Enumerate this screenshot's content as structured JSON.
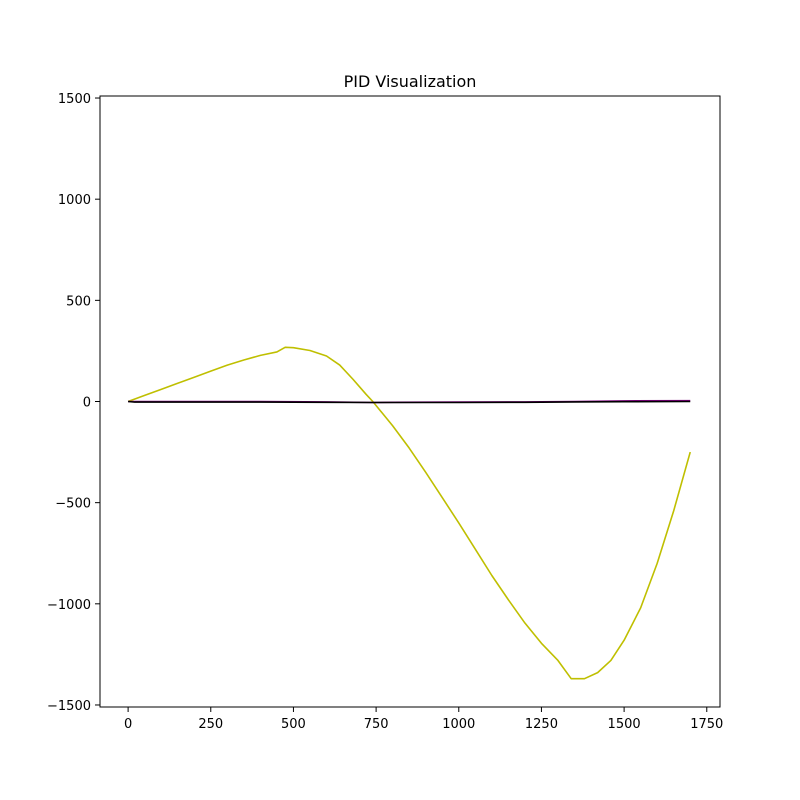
{
  "chart_data": {
    "type": "line",
    "title": "PID Visualization",
    "xlabel": "",
    "ylabel": "",
    "xlim": [
      -85,
      1790
    ],
    "ylim": [
      -1510,
      1510
    ],
    "xticks": [
      0,
      250,
      500,
      750,
      1000,
      1250,
      1500,
      1750
    ],
    "yticks": [
      -1500,
      -1000,
      -500,
      0,
      500,
      1000,
      1500
    ],
    "xtick_labels": [
      "0",
      "250",
      "500",
      "750",
      "1000",
      "1250",
      "1500",
      "1750"
    ],
    "ytick_labels": [
      "−1500",
      "−1000",
      "−500",
      "0",
      "500",
      "1000",
      "1500"
    ],
    "grid": false,
    "legend": "none",
    "series": [
      {
        "color": "#bfbf00",
        "x": [
          0,
          50,
          100,
          150,
          200,
          250,
          300,
          350,
          400,
          450,
          475,
          500,
          550,
          600,
          640,
          680,
          720,
          740,
          760,
          800,
          850,
          900,
          950,
          1000,
          1050,
          1100,
          1150,
          1200,
          1250,
          1300,
          1340,
          1380,
          1420,
          1460,
          1500,
          1550,
          1600,
          1650,
          1700
        ],
        "y": [
          0,
          30,
          60,
          90,
          120,
          150,
          180,
          205,
          228,
          245,
          268,
          266,
          252,
          225,
          180,
          110,
          35,
          0,
          -40,
          -120,
          -230,
          -350,
          -475,
          -600,
          -730,
          -860,
          -980,
          -1095,
          -1195,
          -1280,
          -1370,
          -1370,
          -1340,
          -1280,
          -1180,
          -1020,
          -800,
          -540,
          -250
        ]
      },
      {
        "color": "#800080",
        "x": [
          0,
          200,
          400,
          600,
          740,
          800,
          1000,
          1200,
          1350,
          1500,
          1700
        ],
        "y": [
          0,
          0,
          0,
          -2,
          -5,
          -4,
          -3,
          -2,
          0,
          3,
          4
        ]
      },
      {
        "color": "#000000",
        "x": [
          0,
          20,
          200,
          400,
          600,
          740,
          800,
          1000,
          1200,
          1350,
          1500,
          1700
        ],
        "y": [
          0,
          -3,
          -3,
          -3,
          -4,
          -5,
          -5,
          -5,
          -4,
          -2,
          -1,
          0
        ]
      }
    ]
  }
}
